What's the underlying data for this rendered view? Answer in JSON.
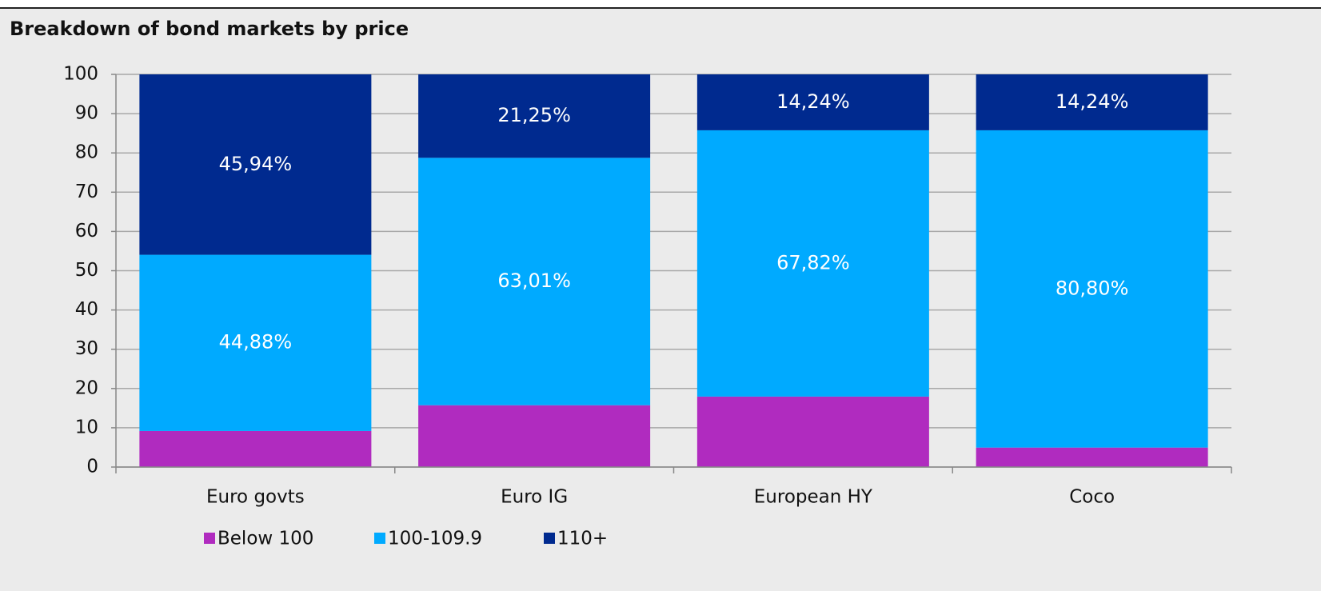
{
  "chart_data": {
    "type": "stacked_bar",
    "title": "Breakdown of bond markets by price",
    "categories": [
      "Euro govts",
      "Euro IG",
      "European HY",
      "Coco"
    ],
    "series": [
      {
        "name": "Below 100",
        "color": "#b02bbf",
        "values": [
          9.18,
          15.74,
          17.94,
          4.96
        ]
      },
      {
        "name": "100-109.9",
        "color": "#00aaff",
        "values": [
          44.88,
          63.01,
          67.82,
          80.8
        ],
        "value_labels": [
          "44,88%",
          "63,01%",
          "67,82%",
          "80,80%"
        ]
      },
      {
        "name": "110+",
        "color": "#002a8f",
        "values": [
          45.94,
          21.25,
          14.24,
          14.24
        ],
        "value_labels": [
          "45,94%",
          "21,25%",
          "14,24%",
          "14,24%"
        ]
      }
    ],
    "ylim": [
      0,
      100
    ],
    "yticks": [
      0,
      10,
      20,
      30,
      40,
      50,
      60,
      70,
      80,
      90,
      100
    ],
    "grid": true,
    "legend": "bottom"
  }
}
